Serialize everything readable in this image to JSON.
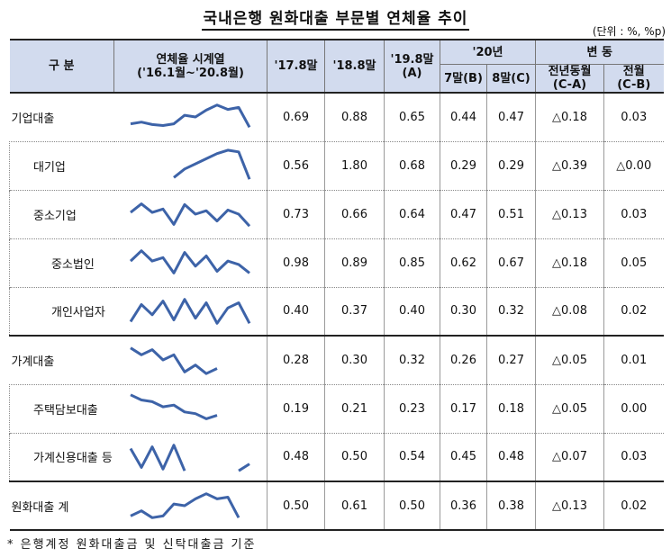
{
  "title": "국내은행 원화대출 부문별 연체율 추이",
  "unit": "(단위 : %, %p)",
  "header": {
    "category": "구  분",
    "sparkline_line1": "연체율 시계열",
    "sparkline_line2": "('16.1월~'20.8월)",
    "col_1708": "'17.8말",
    "col_1808": "'18.8말",
    "col_1908_line1": "'19.8말",
    "col_1908_line2": "(A)",
    "col_20": "'20년",
    "col_2007": "7말(B)",
    "col_2008": "8말(C)",
    "change": "변  동",
    "yoy_line1": "전년동월",
    "yoy_line2": "(C-A)",
    "mom_line1": "전월",
    "mom_line2": "(C-B)"
  },
  "rows": [
    {
      "label": "기업대출",
      "level": 0,
      "v1708": "0.69",
      "v1808": "0.88",
      "v1908": "0.65",
      "v2007": "0.44",
      "v2008": "0.47",
      "yoy": "△0.18",
      "mom": "0.03",
      "spark": [
        0.3,
        0.35,
        0.28,
        0.25,
        0.3,
        0.55,
        0.5,
        0.7,
        0.85,
        0.72,
        0.78,
        0.2
      ]
    },
    {
      "label": "대기업",
      "level": 1,
      "v1708": "0.56",
      "v1808": "1.80",
      "v1908": "0.68",
      "v2007": "0.29",
      "v2008": "0.29",
      "yoy": "△0.39",
      "mom": "△0.00",
      "spark": [
        null,
        null,
        null,
        null,
        0.15,
        0.4,
        0.55,
        0.7,
        0.85,
        0.95,
        0.9,
        0.1
      ]
    },
    {
      "label": "중소기업",
      "level": 1,
      "v1708": "0.73",
      "v1808": "0.66",
      "v1908": "0.64",
      "v2007": "0.47",
      "v2008": "0.51",
      "yoy": "△0.13",
      "mom": "0.03",
      "spark": [
        0.55,
        0.8,
        0.55,
        0.65,
        0.2,
        0.78,
        0.5,
        0.6,
        0.3,
        0.62,
        0.5,
        0.15
      ]
    },
    {
      "label": "중소법인",
      "level": 2,
      "v1708": "0.98",
      "v1808": "0.89",
      "v1908": "0.85",
      "v2007": "0.62",
      "v2008": "0.67",
      "yoy": "△0.18",
      "mom": "0.05",
      "spark": [
        0.55,
        0.85,
        0.55,
        0.65,
        0.2,
        0.8,
        0.4,
        0.7,
        0.25,
        0.55,
        0.45,
        0.2
      ]
    },
    {
      "label": "개인사업자",
      "level": 2,
      "v1708": "0.40",
      "v1808": "0.37",
      "v1908": "0.40",
      "v2007": "0.30",
      "v2008": "0.32",
      "yoy": "△0.08",
      "mom": "0.02",
      "spark": [
        0.2,
        0.7,
        0.4,
        0.8,
        0.25,
        0.85,
        0.3,
        0.75,
        0.15,
        0.6,
        0.75,
        0.15
      ]
    },
    {
      "label": "가계대출",
      "level": 0,
      "v1708": "0.28",
      "v1808": "0.30",
      "v1908": "0.32",
      "v2007": "0.26",
      "v2008": "0.27",
      "yoy": "△0.05",
      "mom": "0.01",
      "spark": [
        0.85,
        0.65,
        0.8,
        0.5,
        0.65,
        0.15,
        0.35,
        0.1,
        0.25,
        null,
        null,
        null
      ]
    },
    {
      "label": "주택담보대출",
      "level": 1,
      "v1708": "0.19",
      "v1808": "0.21",
      "v1908": "0.23",
      "v2007": "0.17",
      "v2008": "0.18",
      "yoy": "△0.05",
      "mom": "0.00",
      "spark": [
        0.9,
        0.75,
        0.7,
        0.55,
        0.6,
        0.4,
        0.35,
        0.2,
        0.3,
        null,
        null,
        null
      ]
    },
    {
      "label": "가계신용대출 등",
      "level": 1,
      "v1708": "0.48",
      "v1808": "0.50",
      "v1908": "0.54",
      "v2007": "0.45",
      "v2008": "0.48",
      "yoy": "△0.07",
      "mom": "0.03",
      "spark": [
        0.75,
        0.2,
        0.8,
        0.15,
        0.85,
        0.1,
        null,
        null,
        null,
        null,
        0.1,
        0.3
      ]
    },
    {
      "label": "원화대출 계",
      "level": 0,
      "v1708": "0.50",
      "v1808": "0.61",
      "v1908": "0.50",
      "v2007": "0.36",
      "v2008": "0.38",
      "yoy": "△0.13",
      "mom": "0.02",
      "spark": [
        0.2,
        0.35,
        0.15,
        0.2,
        0.55,
        0.5,
        0.7,
        0.85,
        0.7,
        0.75,
        0.15,
        null
      ]
    }
  ],
  "colors": {
    "header_bg": "#d2dbee",
    "line": "#3d63a8"
  },
  "footnote": "* 은행계정 원화대출금 및 신탁대출금 기준"
}
